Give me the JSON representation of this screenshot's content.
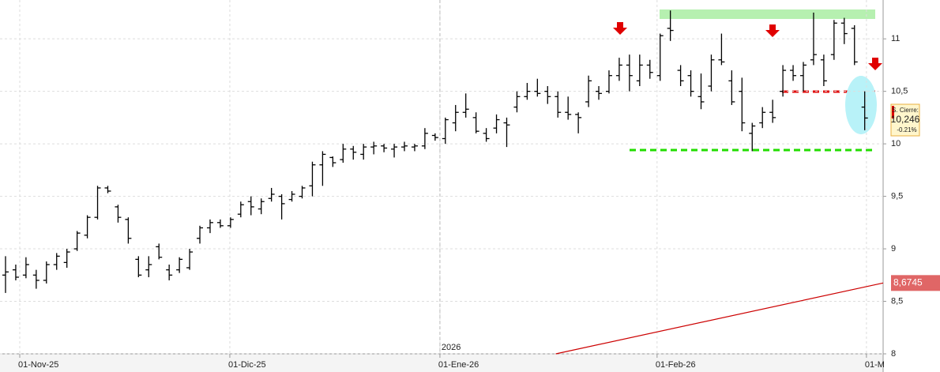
{
  "chart_data": {
    "type": "ohlc",
    "x": [
      0,
      1,
      2,
      3,
      4,
      5,
      6,
      7,
      8,
      9,
      10,
      11,
      12,
      13,
      14,
      15,
      16,
      17,
      18,
      19,
      20,
      21,
      22,
      23,
      24,
      25,
      26,
      27,
      28,
      29,
      30,
      31,
      32,
      33,
      34,
      35,
      36,
      37,
      38,
      39,
      40,
      41,
      42,
      43,
      44,
      45,
      46,
      47,
      48,
      49,
      50,
      51,
      52,
      53,
      54,
      55,
      56,
      57,
      58,
      59,
      60,
      61,
      62,
      63,
      64,
      65,
      66,
      67,
      68,
      69,
      70,
      71,
      72,
      73,
      74,
      75,
      76,
      77,
      78,
      79,
      80,
      81,
      82,
      83,
      84
    ],
    "open": [
      8.75,
      8.8,
      8.75,
      8.75,
      8.7,
      8.85,
      8.87,
      9.0,
      9.13,
      9.3,
      9.58,
      9.4,
      9.28,
      8.9,
      8.8,
      9.02,
      8.8,
      8.8,
      8.82,
      9.1,
      9.2,
      9.25,
      9.22,
      9.33,
      9.45,
      9.38,
      9.48,
      9.5,
      9.47,
      9.5,
      9.6,
      9.8,
      9.87,
      9.85,
      9.95,
      9.9,
      9.97,
      9.98,
      9.95,
      9.97,
      9.97,
      9.98,
      10.08,
      10.05,
      10.2,
      10.3,
      10.25,
      10.1,
      10.15,
      10.2,
      10.35,
      10.45,
      10.5,
      10.5,
      10.45,
      10.3,
      10.28,
      10.4,
      10.5,
      10.5,
      10.65,
      10.75,
      10.6,
      10.75,
      10.65,
      11.1,
      10.7,
      10.65,
      10.45,
      10.55,
      10.8,
      10.6,
      10.5,
      10.1,
      10.2,
      10.3,
      10.5,
      10.7,
      10.65,
      10.8,
      10.8,
      10.85,
      11.15,
      11.1,
      10.35
    ],
    "high": [
      8.93,
      8.85,
      8.92,
      8.8,
      8.88,
      8.96,
      9.0,
      9.17,
      9.32,
      9.6,
      9.6,
      9.42,
      9.3,
      8.93,
      8.93,
      9.05,
      8.85,
      8.92,
      9.0,
      9.22,
      9.28,
      9.28,
      9.3,
      9.45,
      9.5,
      9.48,
      9.58,
      9.52,
      9.55,
      9.6,
      9.83,
      9.93,
      9.88,
      10.0,
      9.98,
      10.0,
      10.02,
      10.0,
      10.0,
      10.02,
      10.0,
      10.15,
      10.1,
      10.25,
      10.37,
      10.48,
      10.3,
      10.15,
      10.28,
      10.25,
      10.5,
      10.58,
      10.62,
      10.55,
      10.5,
      10.45,
      10.3,
      10.65,
      10.55,
      10.7,
      10.82,
      10.85,
      10.85,
      10.8,
      11.05,
      11.27,
      10.75,
      10.7,
      10.67,
      10.85,
      11.05,
      10.7,
      10.63,
      10.2,
      10.35,
      10.42,
      10.75,
      10.75,
      10.78,
      11.25,
      10.85,
      11.18,
      11.2,
      11.13,
      10.5
    ],
    "low": [
      8.58,
      8.7,
      8.72,
      8.62,
      8.67,
      8.8,
      8.82,
      8.98,
      9.1,
      9.28,
      9.53,
      9.25,
      9.05,
      8.73,
      8.73,
      8.9,
      8.7,
      8.77,
      8.8,
      9.05,
      9.15,
      9.2,
      9.2,
      9.3,
      9.32,
      9.33,
      9.45,
      9.28,
      9.45,
      9.48,
      9.5,
      9.6,
      9.78,
      9.82,
      9.85,
      9.85,
      9.9,
      9.92,
      9.87,
      9.93,
      9.93,
      9.95,
      10.03,
      10.0,
      10.12,
      10.25,
      10.1,
      10.02,
      10.1,
      9.97,
      10.3,
      10.42,
      10.45,
      10.38,
      10.25,
      10.23,
      10.1,
      10.35,
      10.42,
      10.48,
      10.6,
      10.5,
      10.55,
      10.62,
      10.6,
      10.98,
      10.55,
      10.45,
      10.33,
      10.5,
      10.75,
      10.37,
      10.12,
      9.93,
      10.15,
      10.2,
      10.45,
      10.6,
      10.5,
      10.75,
      10.55,
      10.8,
      10.95,
      10.75,
      10.13
    ],
    "close": [
      8.78,
      8.73,
      8.85,
      8.7,
      8.85,
      8.93,
      8.97,
      9.15,
      9.3,
      9.58,
      9.55,
      9.3,
      9.1,
      8.75,
      8.85,
      8.92,
      8.75,
      8.9,
      8.97,
      9.2,
      9.25,
      9.22,
      9.28,
      9.42,
      9.4,
      9.45,
      9.52,
      9.43,
      9.52,
      9.58,
      9.8,
      9.9,
      9.82,
      9.95,
      9.92,
      9.97,
      9.98,
      9.96,
      9.97,
      9.98,
      9.98,
      10.1,
      10.06,
      10.23,
      10.3,
      10.33,
      10.12,
      10.05,
      10.23,
      10.18,
      10.45,
      10.5,
      10.48,
      10.45,
      10.3,
      10.28,
      10.25,
      10.6,
      10.48,
      10.65,
      10.75,
      10.65,
      10.75,
      10.68,
      11.03,
      11.08,
      10.6,
      10.5,
      10.4,
      10.8,
      10.78,
      10.4,
      10.2,
      10.17,
      10.3,
      10.25,
      10.7,
      10.65,
      10.75,
      10.85,
      10.6,
      11.15,
      11.05,
      10.78,
      10.246
    ],
    "color": "#000000",
    "moving_average": {
      "x": [
        53.8,
        85.8
      ],
      "values": [
        8.0,
        8.6745
      ],
      "value_labels": [
        "",
        "8,6745"
      ],
      "color": "#cc0000"
    },
    "price_tag": {
      "title": "S. Cierre:",
      "value": 10.246,
      "label": "10,246",
      "change": "-0.21%"
    },
    "year_marker": {
      "x": 42.47,
      "label": "2026"
    },
    "xlim": [
      -0.54,
      85.8
    ],
    "xticks": [
      {
        "value": 1.39,
        "label": "01-Nov-25"
      },
      {
        "value": 21.93,
        "label": "01-Dic-25"
      },
      {
        "value": 42.47,
        "label": "01-Ene-26"
      },
      {
        "value": 63.7,
        "label": "01-Feb-26"
      },
      {
        "value": 84.17,
        "label": "01-M"
      }
    ],
    "ylim": [
      8,
      11.37
    ],
    "yticks": [
      {
        "value": 8,
        "label": "8"
      },
      {
        "value": 8.5,
        "label": "8,5"
      },
      {
        "value": 9,
        "label": "9"
      },
      {
        "value": 9.5,
        "label": "9,5"
      },
      {
        "value": 10,
        "label": "10"
      },
      {
        "value": 10.5,
        "label": "10,5"
      },
      {
        "value": 11,
        "label": "11"
      }
    ],
    "grid": true
  }
}
